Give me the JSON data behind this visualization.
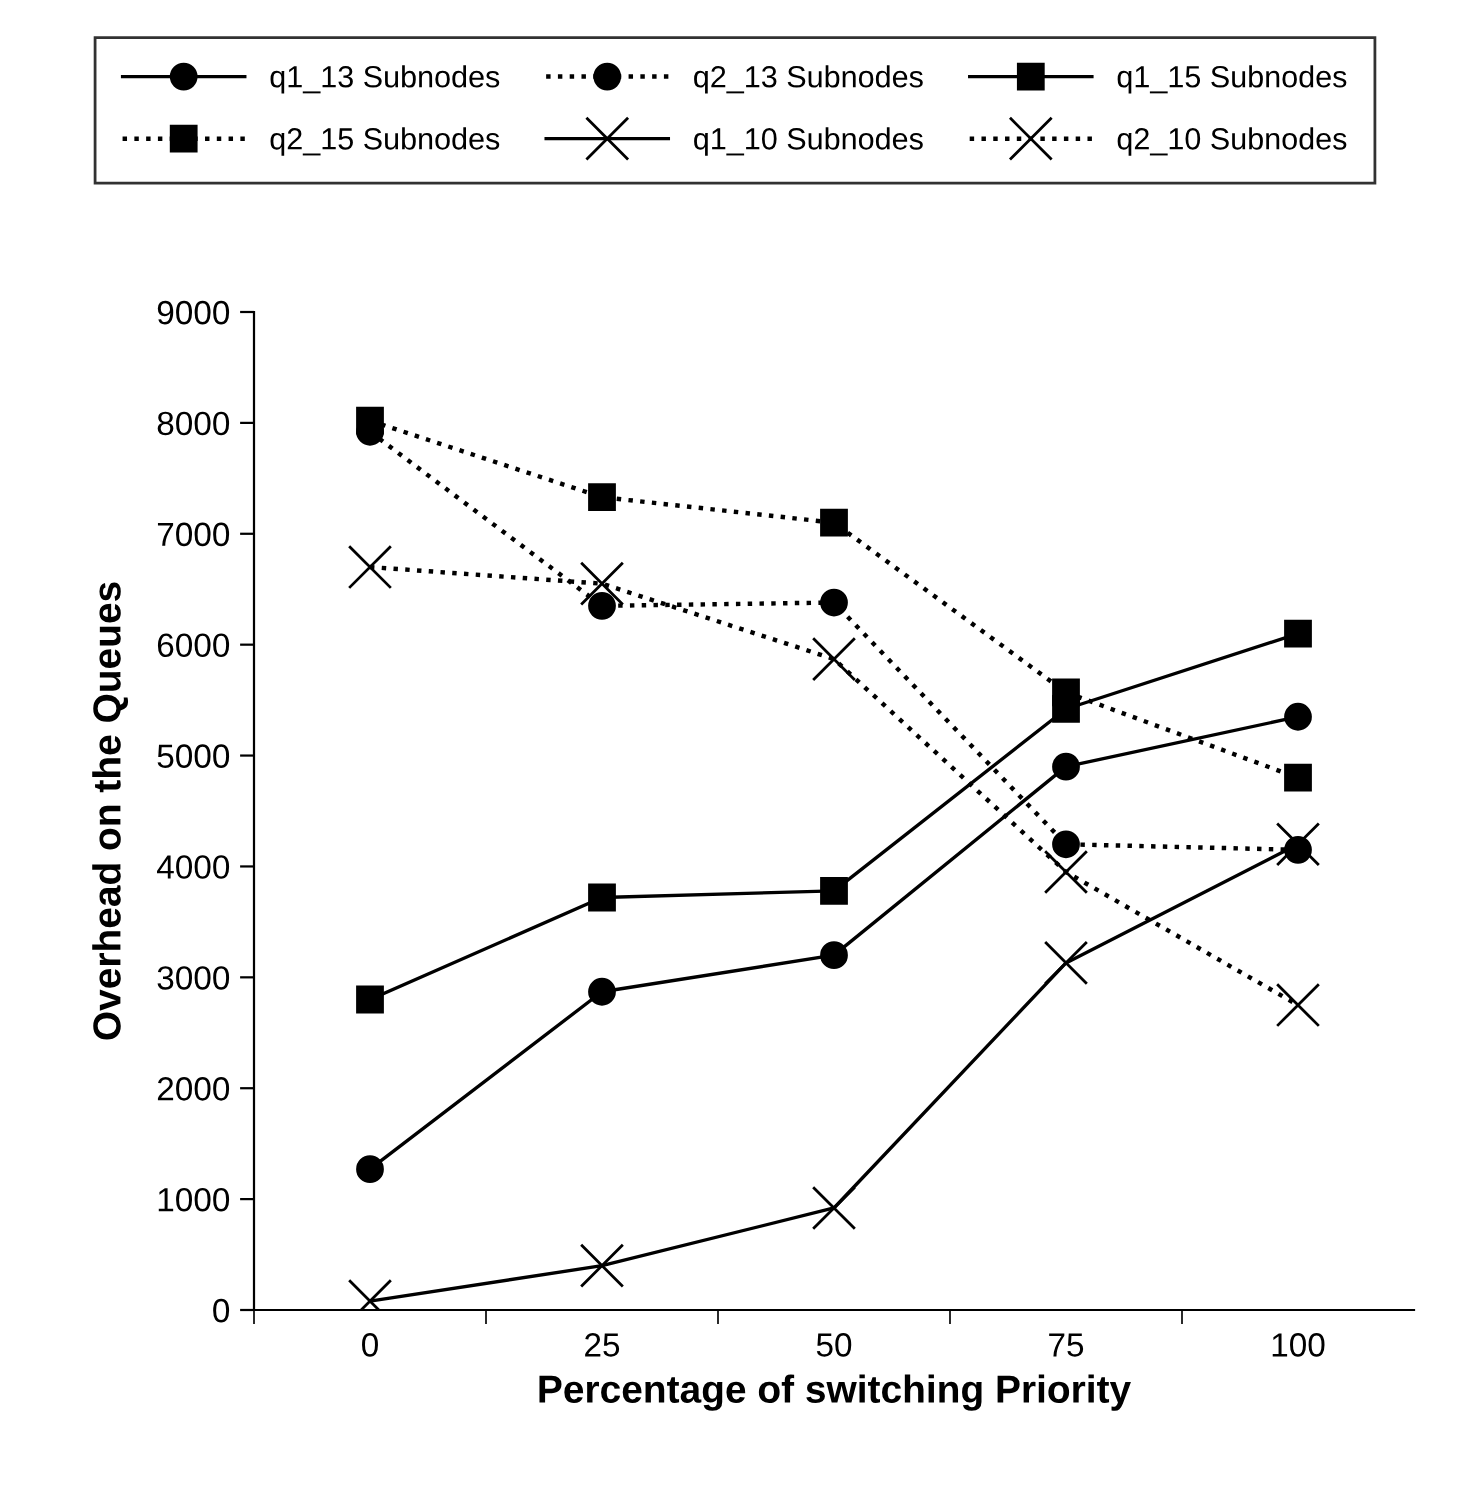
{
  "chart_data": {
    "type": "line",
    "xlabel": "Percentage of switching Priority",
    "ylabel": "Overhead on the Queues",
    "categories": [
      "0",
      "25",
      "50",
      "75",
      "100"
    ],
    "series": [
      {
        "name": "q1_13 Subnodes",
        "color": "#000000",
        "marker": "circle",
        "line_style": "solid",
        "values": [
          1270,
          2870,
          3200,
          4900,
          5350
        ]
      },
      {
        "name": "q2_13 Subnodes",
        "color": "#000000",
        "marker": "circle",
        "line_style": "dotted",
        "values": [
          7920,
          6350,
          6380,
          4200,
          4150
        ]
      },
      {
        "name": "q1_15 Subnodes",
        "color": "#000000",
        "marker": "square",
        "line_style": "solid",
        "values": [
          2800,
          3720,
          3780,
          5420,
          6100
        ]
      },
      {
        "name": "q2_15 Subnodes",
        "color": "#000000",
        "marker": "square",
        "line_style": "dotted",
        "values": [
          8020,
          7330,
          7100,
          5570,
          4800
        ]
      },
      {
        "name": "q1_10 Subnodes",
        "color": "#000000",
        "marker": "cross",
        "line_style": "solid",
        "values": [
          80,
          400,
          920,
          3130,
          4200
        ]
      },
      {
        "name": "q2_10 Subnodes",
        "color": "#000000",
        "marker": "cross",
        "line_style": "dotted",
        "values": [
          6700,
          6550,
          5870,
          3950,
          2750
        ]
      }
    ],
    "ylim": [
      0,
      9000
    ],
    "yticks": [
      0,
      1000,
      2000,
      3000,
      4000,
      5000,
      6000,
      7000,
      8000,
      9000
    ],
    "grid": false,
    "legend": "top"
  }
}
